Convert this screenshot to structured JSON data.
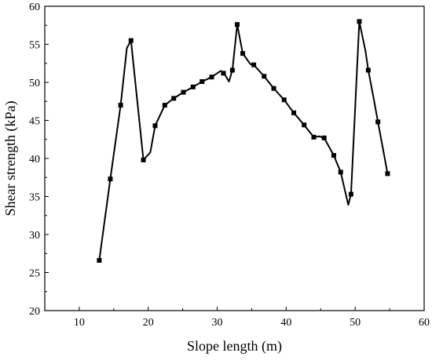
{
  "chart_data": {
    "type": "line",
    "title": "",
    "xlabel": "Slope length (m)",
    "ylabel": "Shear strength (kPa)",
    "xlim": [
      5,
      60
    ],
    "ylim": [
      20,
      60
    ],
    "xticks": [
      10,
      20,
      30,
      40,
      50,
      60
    ],
    "yticks": [
      20,
      25,
      30,
      35,
      40,
      45,
      50,
      55,
      60
    ],
    "grid": false,
    "legend": "none",
    "series": [
      {
        "color": "#000000",
        "marker": "square",
        "line": [
          [
            12.9,
            26.6
          ],
          [
            14.5,
            37.3
          ],
          [
            16.0,
            47.0
          ],
          [
            16.9,
            54.5
          ],
          [
            17.5,
            55.5
          ],
          [
            19.3,
            39.8
          ],
          [
            20.3,
            40.8
          ],
          [
            21.0,
            44.3
          ],
          [
            22.4,
            47.0
          ],
          [
            23.7,
            47.9
          ],
          [
            25.1,
            48.7
          ],
          [
            26.5,
            49.4
          ],
          [
            27.8,
            50.1
          ],
          [
            29.2,
            50.7
          ],
          [
            30.5,
            51.5
          ],
          [
            31.0,
            51.2
          ],
          [
            31.7,
            50.1
          ],
          [
            32.2,
            51.6
          ],
          [
            32.9,
            57.6
          ],
          [
            33.7,
            53.8
          ],
          [
            34.8,
            52.4
          ],
          [
            35.3,
            52.3
          ],
          [
            36.8,
            50.8
          ],
          [
            38.2,
            49.2
          ],
          [
            39.7,
            47.7
          ],
          [
            41.1,
            46.0
          ],
          [
            42.6,
            44.4
          ],
          [
            44.0,
            42.8
          ],
          [
            44.8,
            42.9
          ],
          [
            45.5,
            42.7
          ],
          [
            46.9,
            40.4
          ],
          [
            47.9,
            38.2
          ],
          [
            49.0,
            33.9
          ],
          [
            49.4,
            35.3
          ],
          [
            50.6,
            58.0
          ],
          [
            51.5,
            54.1
          ],
          [
            51.9,
            51.6
          ],
          [
            52.7,
            47.8
          ],
          [
            53.3,
            44.8
          ],
          [
            54.7,
            38.0
          ]
        ],
        "points": [
          [
            12.9,
            26.6
          ],
          [
            14.5,
            37.3
          ],
          [
            16.0,
            47.0
          ],
          [
            17.5,
            55.5
          ],
          [
            19.3,
            39.8
          ],
          [
            21.0,
            44.3
          ],
          [
            22.4,
            47.0
          ],
          [
            23.7,
            47.9
          ],
          [
            25.1,
            48.7
          ],
          [
            26.5,
            49.4
          ],
          [
            27.8,
            50.1
          ],
          [
            29.2,
            50.7
          ],
          [
            30.9,
            51.2
          ],
          [
            32.2,
            51.6
          ],
          [
            32.9,
            57.6
          ],
          [
            33.7,
            53.8
          ],
          [
            35.3,
            52.3
          ],
          [
            36.8,
            50.8
          ],
          [
            38.2,
            49.2
          ],
          [
            39.7,
            47.7
          ],
          [
            41.1,
            46.0
          ],
          [
            42.6,
            44.4
          ],
          [
            44.0,
            42.8
          ],
          [
            45.5,
            42.7
          ],
          [
            46.9,
            40.4
          ],
          [
            47.9,
            38.2
          ],
          [
            49.4,
            35.3
          ],
          [
            50.6,
            58.0
          ],
          [
            51.9,
            51.6
          ],
          [
            53.3,
            44.8
          ],
          [
            54.7,
            38.0
          ]
        ]
      }
    ]
  }
}
